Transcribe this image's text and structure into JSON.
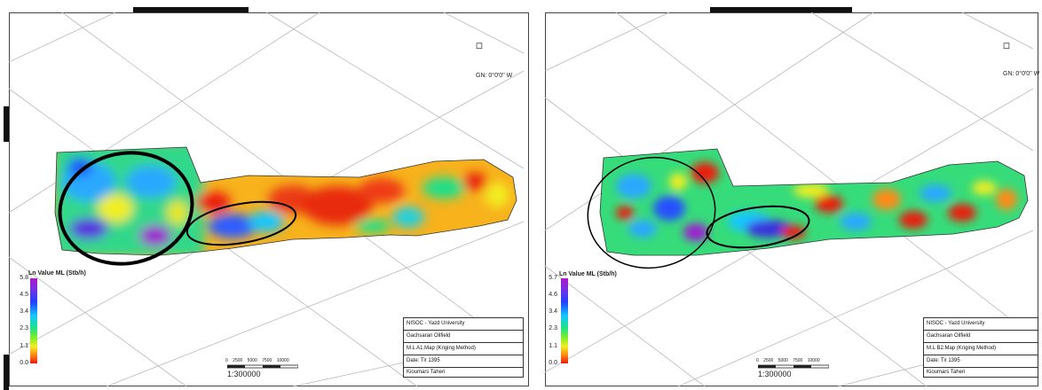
{
  "maps": [
    {
      "north_label": "GN: 0°0'0\" W",
      "legend": {
        "title": "Ln Value ML (Stb/h)",
        "ticks": [
          "5.8",
          "4.5",
          "3.4",
          "2.3",
          "1.1",
          "0.0"
        ]
      },
      "scale": {
        "numbers": "0  2500  5000  7500  10000",
        "ratio": "1:300000"
      },
      "title_block": [
        "NISOC - Yazd University",
        "Gachsaran Oilfield",
        "M.L A1.Map (Kriging Method)",
        "Date: Tir 1395",
        "Kioumars Taheri"
      ],
      "icons": {
        "north": "north-arrow-icon"
      }
    },
    {
      "north_label": "GN: 0°0'0\" W",
      "legend": {
        "title": "Ln Value ML (Stb/h)",
        "ticks": [
          "5.7",
          "4.6",
          "3.4",
          "2.3",
          "1.1",
          "0.0"
        ]
      },
      "scale": {
        "numbers": "0  2500  5000  7500  10000",
        "ratio": "1:300000"
      },
      "title_block": [
        "NISOC - Yazd University",
        "Gachsaran Oilfield",
        "M.L B2.Map (Kriging Method)",
        "Date: Tir 1395",
        "Kioumars Taheri"
      ],
      "icons": {
        "north": "north-arrow-icon"
      }
    }
  ],
  "colors": {
    "high": "#b015c8",
    "upper": "#2040ff",
    "mid": "#17c6ff",
    "middle": "#19e28a",
    "lower": "#f2ee20",
    "low": "#ea1a10"
  }
}
